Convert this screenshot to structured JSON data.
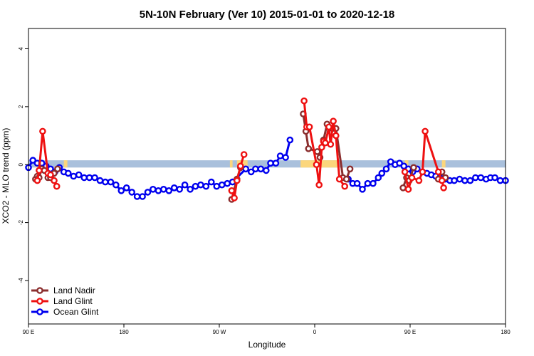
{
  "chart_data": {
    "type": "line",
    "title": "5N-10N February (Ver 10)   2015-01-01 to 2020-12-18",
    "xlabel": "Longitude",
    "ylabel": "XCO2 - MLO trend (ppm)",
    "xlim": [
      -90,
      180
    ],
    "ylim": [
      -5.5,
      4.7
    ],
    "x_ticks": [
      {
        "value": -90,
        "label": "90 E"
      },
      {
        "value": -36,
        "label": "180"
      },
      {
        "value": 18,
        "label": "90 W"
      },
      {
        "value": 72,
        "label": "0"
      },
      {
        "value": 126,
        "label": "90 E"
      },
      {
        "value": 180,
        "label": "180"
      }
    ],
    "y_ticks": [
      -4,
      -2,
      0,
      2,
      4
    ],
    "background_band": {
      "y_range": [
        -0.1,
        0.15
      ],
      "ocean_color": "#a9c0dc",
      "land_color": "#fbd67c",
      "land_segments": [
        [
          -86,
          -84
        ],
        [
          -70,
          -68
        ],
        [
          24,
          25.5
        ],
        [
          28,
          34
        ],
        [
          64,
          85
        ],
        [
          123,
          125
        ],
        [
          144,
          146
        ]
      ]
    },
    "series": [
      {
        "name": "Land Nadir",
        "color": "#8b2e2e",
        "points": [
          [
            -86,
            -0.5
          ],
          [
            -85,
            -0.4
          ],
          [
            -84,
            -0.45
          ],
          [
            -82.5,
            -0.15
          ],
          [
            -81,
            -0.2
          ],
          [
            -79,
            -0.45
          ],
          [
            -77.5,
            -0.45
          ],
          [
            -75.5,
            -0.3
          ],
          [
            -73.5,
            -0.15
          ],
          [
            25,
            -1.2
          ],
          [
            28,
            -0.5
          ],
          [
            30,
            -0.1
          ],
          [
            65.5,
            1.75
          ],
          [
            67,
            1.15
          ],
          [
            68.5,
            0.55
          ],
          [
            73.5,
            0.45
          ],
          [
            75,
            0.25
          ],
          [
            77,
            0.85
          ],
          [
            79,
            1.4
          ],
          [
            82,
            1.25
          ],
          [
            84,
            1.25
          ],
          [
            88,
            -0.45
          ],
          [
            90,
            -0.5
          ],
          [
            92,
            -0.15
          ],
          [
            122,
            -0.8
          ],
          [
            124,
            -0.45
          ],
          [
            125.5,
            -0.55
          ],
          [
            128,
            -0.1
          ],
          [
            142,
            -0.5
          ],
          [
            144,
            -0.25
          ],
          [
            146,
            -0.45
          ]
        ]
      },
      {
        "name": "Land Glint",
        "color": "#ee1111",
        "points": [
          [
            -85,
            -0.55
          ],
          [
            -84,
            -0.2
          ],
          [
            -82,
            1.15
          ],
          [
            -79,
            -0.3
          ],
          [
            -77.5,
            -0.35
          ],
          [
            -75.5,
            -0.55
          ],
          [
            -74,
            -0.75
          ],
          [
            25,
            -0.9
          ],
          [
            26.5,
            -1.15
          ],
          [
            28,
            -0.55
          ],
          [
            30,
            -0.05
          ],
          [
            32,
            0.35
          ],
          [
            66,
            2.2
          ],
          [
            67.5,
            1.3
          ],
          [
            69,
            1.3
          ],
          [
            73,
            0.0
          ],
          [
            74.5,
            -0.7
          ],
          [
            76,
            0.6
          ],
          [
            77,
            0.8
          ],
          [
            78,
            0.75
          ],
          [
            80,
            1.3
          ],
          [
            81,
            0.7
          ],
          [
            82.5,
            1.5
          ],
          [
            84,
            1.0
          ],
          [
            86,
            -0.5
          ],
          [
            89,
            -0.75
          ],
          [
            123,
            -0.25
          ],
          [
            125,
            -0.85
          ],
          [
            127,
            -0.45
          ],
          [
            131,
            -0.55
          ],
          [
            133,
            -0.25
          ],
          [
            134.5,
            1.15
          ],
          [
            142,
            -0.25
          ],
          [
            144,
            -0.55
          ],
          [
            145,
            -0.8
          ]
        ]
      },
      {
        "name": "Ocean Glint",
        "color": "#0000ee",
        "points": [
          [
            -90,
            -0.1
          ],
          [
            -87.5,
            0.15
          ],
          [
            -85,
            0.05
          ],
          [
            -82.5,
            0.05
          ],
          [
            -80,
            -0.05
          ],
          [
            -77.5,
            -0.15
          ],
          [
            -75,
            -0.25
          ],
          [
            -72.5,
            -0.1
          ],
          [
            -70,
            -0.25
          ],
          [
            -67.5,
            -0.3
          ],
          [
            -64.5,
            -0.4
          ],
          [
            -61.5,
            -0.35
          ],
          [
            -58.5,
            -0.45
          ],
          [
            -55.5,
            -0.45
          ],
          [
            -52.5,
            -0.45
          ],
          [
            -49.5,
            -0.55
          ],
          [
            -46.5,
            -0.6
          ],
          [
            -43.5,
            -0.6
          ],
          [
            -40.5,
            -0.7
          ],
          [
            -37.5,
            -0.9
          ],
          [
            -34.5,
            -0.8
          ],
          [
            -31.5,
            -0.95
          ],
          [
            -28.5,
            -1.1
          ],
          [
            -25.5,
            -1.1
          ],
          [
            -22.5,
            -0.95
          ],
          [
            -19.5,
            -0.85
          ],
          [
            -16.5,
            -0.9
          ],
          [
            -13.5,
            -0.85
          ],
          [
            -10.5,
            -0.9
          ],
          [
            -7.5,
            -0.8
          ],
          [
            -4.5,
            -0.85
          ],
          [
            -1.5,
            -0.7
          ],
          [
            1.5,
            -0.85
          ],
          [
            4.5,
            -0.75
          ],
          [
            7.5,
            -0.7
          ],
          [
            10.5,
            -0.75
          ],
          [
            13.5,
            -0.6
          ],
          [
            16.5,
            -0.75
          ],
          [
            19.5,
            -0.7
          ],
          [
            22.5,
            -0.65
          ],
          [
            25.5,
            -0.6
          ],
          [
            33,
            -0.15
          ],
          [
            36,
            -0.25
          ],
          [
            38.5,
            -0.15
          ],
          [
            41.5,
            -0.15
          ],
          [
            44.5,
            -0.2
          ],
          [
            47,
            0.05
          ],
          [
            50,
            0.05
          ],
          [
            52.5,
            0.3
          ],
          [
            55.5,
            0.25
          ],
          [
            58,
            0.85
          ],
          [
            91,
            -0.5
          ],
          [
            93.5,
            -0.65
          ],
          [
            96,
            -0.65
          ],
          [
            99,
            -0.85
          ],
          [
            102,
            -0.65
          ],
          [
            105,
            -0.65
          ],
          [
            108,
            -0.45
          ],
          [
            110,
            -0.3
          ],
          [
            112.5,
            -0.15
          ],
          [
            115,
            0.1
          ],
          [
            117.5,
            0.0
          ],
          [
            120,
            0.05
          ],
          [
            122.5,
            -0.05
          ],
          [
            125,
            -0.15
          ],
          [
            127.5,
            -0.25
          ],
          [
            130,
            -0.15
          ],
          [
            133,
            -0.25
          ],
          [
            135.5,
            -0.3
          ],
          [
            138,
            -0.35
          ],
          [
            140.5,
            -0.4
          ],
          [
            143,
            -0.45
          ],
          [
            146,
            -0.5
          ],
          [
            148.5,
            -0.55
          ],
          [
            151,
            -0.55
          ],
          [
            154,
            -0.5
          ],
          [
            157,
            -0.55
          ],
          [
            160,
            -0.55
          ],
          [
            163,
            -0.45
          ],
          [
            166,
            -0.45
          ],
          [
            169,
            -0.5
          ],
          [
            171.5,
            -0.45
          ],
          [
            174,
            -0.45
          ],
          [
            177,
            -0.55
          ],
          [
            180,
            -0.55
          ]
        ]
      }
    ],
    "legend": {
      "position": "bottom-left",
      "entries": [
        "Land Nadir",
        "Land Glint",
        "Ocean Glint"
      ]
    }
  }
}
